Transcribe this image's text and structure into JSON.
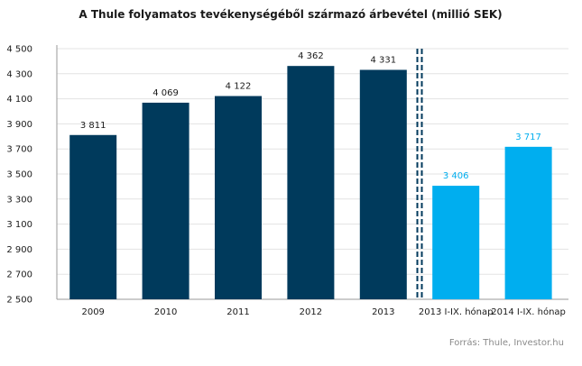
{
  "chart_data": {
    "type": "bar",
    "title": "A Thule folyamatos tevékenységéből származó árbevétel (millió SEK)",
    "categories": [
      "2009",
      "2010",
      "2011",
      "2012",
      "2013",
      "2013 I-IX. hónap",
      "2014 I-IX. hónap"
    ],
    "values": [
      3811,
      4069,
      4122,
      4362,
      4331,
      3406,
      3717
    ],
    "value_labels": [
      "3 811",
      "4 069",
      "4 122",
      "4 362",
      "4 331",
      "3 406",
      "3 717"
    ],
    "ylim": [
      2500,
      4500
    ],
    "yticks": [
      2500,
      2700,
      2900,
      3100,
      3300,
      3500,
      3700,
      3900,
      4100,
      4300,
      4500
    ],
    "ytick_labels": [
      "2 500",
      "2 700",
      "2 900",
      "3 100",
      "3 300",
      "3 500",
      "3 700",
      "3 900",
      "4 100",
      "4 300",
      "4 500"
    ],
    "grid": true,
    "separator_after_index": 4,
    "colors": [
      "#003a5c",
      "#003a5c",
      "#003a5c",
      "#003a5c",
      "#003a5c",
      "#00aeef",
      "#00aeef"
    ],
    "label_colors": [
      "#1a1a1a",
      "#1a1a1a",
      "#1a1a1a",
      "#1a1a1a",
      "#1a1a1a",
      "#00aeef",
      "#00aeef"
    ],
    "source": "Forrás: Thule, Investor.hu"
  }
}
